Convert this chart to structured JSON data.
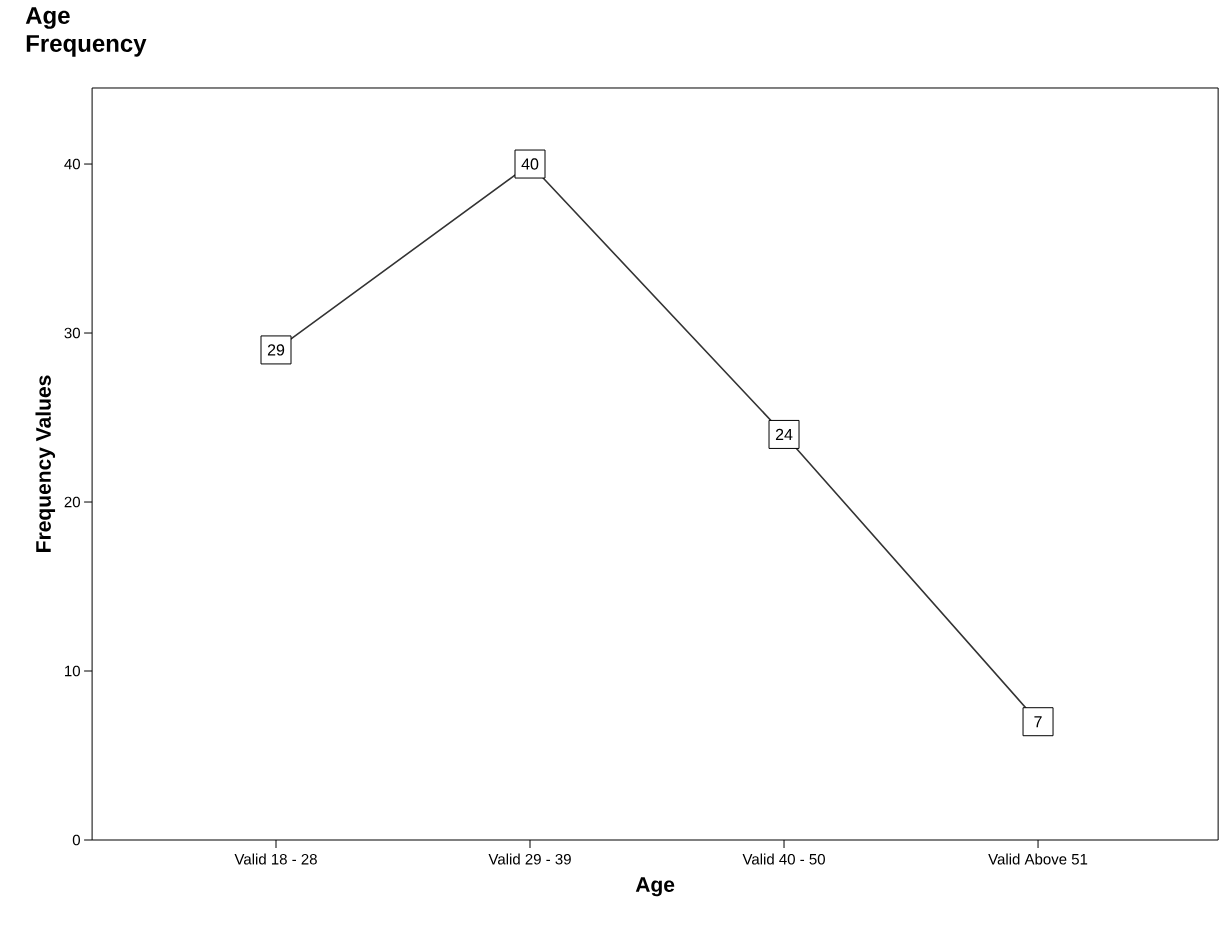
{
  "chart_data": {
    "type": "line",
    "title": "Age",
    "subtitle": "Frequency",
    "xlabel": "Age",
    "ylabel": "Frequency Values",
    "categories": [
      "Valid 18 - 28",
      "Valid 29 - 39",
      "Valid 40 - 50",
      "Valid Above 51"
    ],
    "values": [
      29,
      40,
      24,
      7
    ],
    "color": "#333333",
    "ylim": [
      0,
      44.5
    ],
    "yticks": [
      0,
      10,
      20,
      30,
      40
    ],
    "data_labels": true,
    "grid": false,
    "marker": "square",
    "line_style": "solid"
  }
}
